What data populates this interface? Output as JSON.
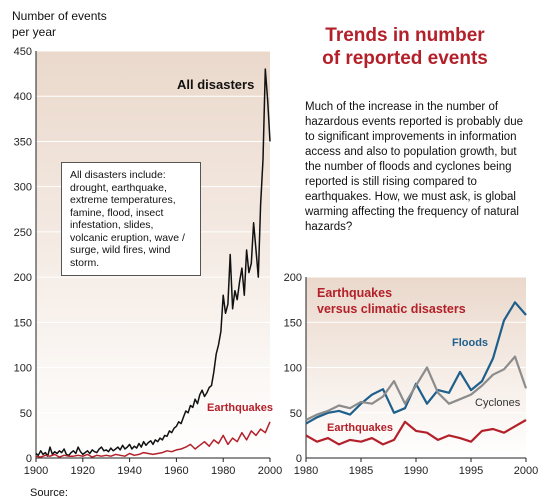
{
  "header": {
    "ylabel_line1": "Number of events",
    "ylabel_line2": "per year",
    "title_line1": "Trends in number",
    "title_line2": "of reported events"
  },
  "paragraph": "Much of the increase in the number of hazardous events reported is probably due to significant improvements in information access and also to population growth, but the number of floods and cyclones being reported is still rising compared to earthquakes. How, we must ask, is global warming affecting the frequency of natural hazards?",
  "source_label": "Source:",
  "note_box": "All disasters include: drought, earthquake, extreme temperatures, famine, flood, insect infestation, slides, volcanic eruption, wave / surge, wild fires, wind storm.",
  "colors": {
    "accent_red": "#b3202a",
    "flood_blue": "#1f5f8b",
    "cyclone_gray": "#8c8c8c",
    "panel_fill": "#ead8cb",
    "black_line": "#111111"
  },
  "chart_data": [
    {
      "type": "line",
      "xlim": [
        1900,
        2000
      ],
      "ylim": [
        0,
        450
      ],
      "xticks": [
        1900,
        1920,
        1940,
        1960,
        1980,
        2000
      ],
      "yticks": [
        0,
        50,
        100,
        150,
        200,
        250,
        300,
        350,
        400,
        450
      ],
      "series": [
        {
          "name": "All disasters",
          "x": [
            1900,
            1901,
            1902,
            1903,
            1904,
            1905,
            1906,
            1907,
            1908,
            1909,
            1910,
            1911,
            1912,
            1913,
            1914,
            1915,
            1916,
            1917,
            1918,
            1919,
            1920,
            1921,
            1922,
            1923,
            1924,
            1925,
            1926,
            1927,
            1928,
            1929,
            1930,
            1931,
            1932,
            1933,
            1934,
            1935,
            1936,
            1937,
            1938,
            1939,
            1940,
            1941,
            1942,
            1943,
            1944,
            1945,
            1946,
            1947,
            1948,
            1949,
            1950,
            1951,
            1952,
            1953,
            1954,
            1955,
            1956,
            1957,
            1958,
            1959,
            1960,
            1961,
            1962,
            1963,
            1964,
            1965,
            1966,
            1967,
            1968,
            1969,
            1970,
            1971,
            1972,
            1973,
            1974,
            1975,
            1976,
            1977,
            1978,
            1979,
            1980,
            1981,
            1982,
            1983,
            1984,
            1985,
            1986,
            1987,
            1988,
            1989,
            1990,
            1991,
            1992,
            1993,
            1994,
            1995,
            1996,
            1997,
            1998,
            1999,
            2000
          ],
          "values": [
            5,
            3,
            8,
            4,
            6,
            2,
            12,
            4,
            7,
            5,
            8,
            6,
            10,
            4,
            3,
            6,
            8,
            5,
            12,
            7,
            4,
            6,
            8,
            5,
            9,
            7,
            6,
            10,
            12,
            8,
            9,
            7,
            11,
            8,
            10,
            12,
            9,
            14,
            10,
            12,
            15,
            10,
            13,
            11,
            16,
            12,
            18,
            14,
            17,
            19,
            15,
            20,
            18,
            22,
            20,
            25,
            24,
            30,
            28,
            33,
            35,
            40,
            38,
            45,
            52,
            50,
            58,
            56,
            65,
            60,
            70,
            75,
            68,
            72,
            78,
            80,
            95,
            115,
            125,
            140,
            180,
            160,
            170,
            225,
            165,
            185,
            175,
            195,
            210,
            180,
            230,
            205,
            215,
            260,
            230,
            200,
            280,
            330,
            430,
            395,
            350
          ]
        },
        {
          "name": "Earthquakes",
          "x": [
            1900,
            1902,
            1904,
            1906,
            1908,
            1910,
            1912,
            1914,
            1916,
            1918,
            1920,
            1922,
            1924,
            1926,
            1928,
            1930,
            1932,
            1934,
            1936,
            1938,
            1940,
            1942,
            1944,
            1946,
            1948,
            1950,
            1952,
            1954,
            1956,
            1958,
            1960,
            1962,
            1964,
            1966,
            1968,
            1970,
            1972,
            1974,
            1976,
            1978,
            1980,
            1982,
            1984,
            1986,
            1988,
            1990,
            1992,
            1994,
            1996,
            1998,
            2000
          ],
          "values": [
            2,
            1,
            3,
            2,
            4,
            1,
            3,
            2,
            2,
            3,
            2,
            4,
            1,
            3,
            2,
            3,
            2,
            4,
            3,
            2,
            5,
            3,
            4,
            6,
            5,
            4,
            5,
            6,
            8,
            7,
            9,
            10,
            12,
            15,
            10,
            14,
            18,
            13,
            20,
            16,
            25,
            15,
            22,
            18,
            28,
            20,
            30,
            25,
            32,
            28,
            40
          ]
        }
      ]
    },
    {
      "type": "line",
      "title_line1": "Earthquakes",
      "title_line2": "versus climatic disasters",
      "xlim": [
        1980,
        2000
      ],
      "ylim": [
        0,
        200
      ],
      "xticks": [
        1980,
        1985,
        1990,
        1995,
        2000
      ],
      "yticks": [
        0,
        50,
        100,
        150,
        200
      ],
      "series": [
        {
          "name": "Floods",
          "x": [
            1980,
            1981,
            1982,
            1983,
            1984,
            1985,
            1986,
            1987,
            1988,
            1989,
            1990,
            1991,
            1992,
            1993,
            1994,
            1995,
            1996,
            1997,
            1998,
            1999,
            2000
          ],
          "values": [
            38,
            45,
            50,
            52,
            48,
            60,
            70,
            76,
            50,
            55,
            82,
            60,
            75,
            72,
            95,
            75,
            85,
            110,
            152,
            172,
            158
          ]
        },
        {
          "name": "Cyclones",
          "x": [
            1980,
            1981,
            1982,
            1983,
            1984,
            1985,
            1986,
            1987,
            1988,
            1989,
            1990,
            1991,
            1992,
            1993,
            1994,
            1995,
            1996,
            1997,
            1998,
            1999,
            2000
          ],
          "values": [
            42,
            48,
            52,
            58,
            55,
            62,
            60,
            68,
            85,
            60,
            80,
            100,
            72,
            60,
            65,
            70,
            80,
            92,
            98,
            112,
            77
          ]
        },
        {
          "name": "Earthquakes",
          "x": [
            1980,
            1981,
            1982,
            1983,
            1984,
            1985,
            1986,
            1987,
            1988,
            1989,
            1990,
            1991,
            1992,
            1993,
            1994,
            1995,
            1996,
            1997,
            1998,
            1999,
            2000
          ],
          "values": [
            25,
            18,
            22,
            15,
            20,
            18,
            22,
            15,
            20,
            40,
            30,
            28,
            20,
            25,
            22,
            18,
            30,
            32,
            28,
            35,
            42
          ]
        }
      ]
    }
  ]
}
